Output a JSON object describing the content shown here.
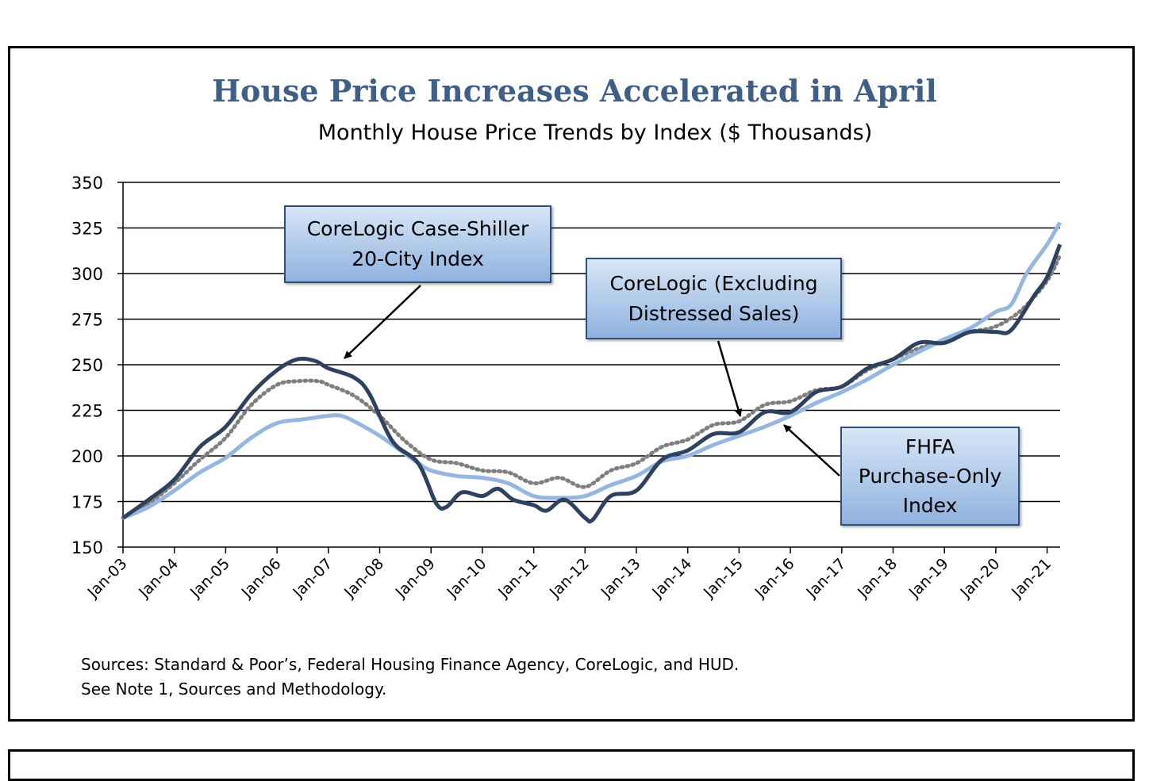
{
  "title": "House Price Increases Accelerated in April",
  "subtitle": "Monthly House Price Trends by Index ($ Thousands)",
  "callouts": {
    "case_shiller": [
      "CoreLogic Case-Shiller",
      "20-City Index"
    ],
    "corelogic": [
      "CoreLogic (Excluding",
      "Distressed Sales)"
    ],
    "fhfa": [
      "FHFA",
      "Purchase-Only",
      "Index"
    ]
  },
  "sources": {
    "line1": "Sources: Standard & Poor’s, Federal Housing Finance Agency, CoreLogic, and HUD.",
    "line2": "See Note 1, Sources and Methodology."
  },
  "colors": {
    "case_shiller": "#2e4260",
    "corelogic": "#7f7f7f",
    "fhfa": "#94b6e0",
    "title": "#3f5f86"
  },
  "chart_data": {
    "type": "line",
    "title": "House Price Increases Accelerated in April",
    "subtitle": "Monthly House Price Trends by Index ($ Thousands)",
    "ylim": [
      150,
      350
    ],
    "yticks": [
      150,
      175,
      200,
      225,
      250,
      275,
      300,
      325,
      350
    ],
    "xlim": [
      2003.0,
      2021.25
    ],
    "xticks": [
      "Jan-03",
      "Jan-04",
      "Jan-05",
      "Jan-06",
      "Jan-07",
      "Jan-08",
      "Jan-09",
      "Jan-10",
      "Jan-11",
      "Jan-12",
      "Jan-13",
      "Jan-14",
      "Jan-15",
      "Jan-16",
      "Jan-17",
      "Jan-18",
      "Jan-19",
      "Jan-20",
      "Jan-21"
    ],
    "grid": "horizontal",
    "series": [
      {
        "name": "CoreLogic Case-Shiller 20-City Index",
        "style": "solid",
        "x": [
          2003.0,
          2003.5,
          2004.0,
          2004.5,
          2005.0,
          2005.5,
          2006.0,
          2006.4,
          2006.75,
          2007.0,
          2007.5,
          2007.8,
          2008.25,
          2008.75,
          2009.1,
          2009.3,
          2009.6,
          2010.0,
          2010.3,
          2010.6,
          2011.0,
          2011.25,
          2011.6,
          2012.0,
          2012.15,
          2012.5,
          2013.0,
          2013.5,
          2014.0,
          2014.5,
          2015.0,
          2015.5,
          2016.0,
          2016.5,
          2017.0,
          2017.5,
          2018.0,
          2018.5,
          2019.0,
          2019.5,
          2020.0,
          2020.3,
          2020.75,
          2021.0,
          2021.25
        ],
        "y": [
          166,
          176,
          187,
          205,
          216,
          234,
          247,
          253,
          252,
          248,
          243,
          234,
          208,
          196,
          174,
          172,
          180,
          178,
          182,
          176,
          173,
          170,
          176,
          166,
          165,
          178,
          181,
          198,
          203,
          212,
          213,
          224,
          224,
          235,
          238,
          248,
          253,
          262,
          262,
          268,
          268,
          269,
          288,
          298,
          316
        ]
      },
      {
        "name": "CoreLogic (Excluding Distressed Sales)",
        "style": "dotted",
        "x": [
          2003.0,
          2003.5,
          2004.0,
          2004.5,
          2005.0,
          2005.5,
          2006.0,
          2006.4,
          2006.8,
          2007.0,
          2007.5,
          2008.0,
          2008.5,
          2009.0,
          2009.5,
          2010.0,
          2010.5,
          2011.0,
          2011.5,
          2012.0,
          2012.5,
          2013.0,
          2013.5,
          2014.0,
          2014.5,
          2015.0,
          2015.5,
          2016.0,
          2016.5,
          2017.0,
          2017.5,
          2018.0,
          2018.5,
          2019.0,
          2019.5,
          2020.0,
          2020.5,
          2021.0,
          2021.25
        ],
        "y": [
          166,
          174,
          185,
          198,
          210,
          228,
          239,
          241,
          241,
          239,
          233,
          222,
          208,
          198,
          196,
          192,
          191,
          185,
          188,
          183,
          192,
          196,
          205,
          209,
          217,
          219,
          228,
          230,
          236,
          238,
          247,
          253,
          259,
          263,
          268,
          271,
          280,
          296,
          310
        ]
      },
      {
        "name": "FHFA Purchase-Only Index",
        "style": "solid",
        "x": [
          2003.0,
          2003.5,
          2004.0,
          2004.5,
          2005.0,
          2005.5,
          2006.0,
          2006.5,
          2007.0,
          2007.25,
          2007.5,
          2008.0,
          2008.5,
          2008.75,
          2009.0,
          2009.5,
          2010.0,
          2010.5,
          2011.0,
          2011.5,
          2012.0,
          2012.5,
          2013.0,
          2013.5,
          2014.0,
          2014.5,
          2015.0,
          2015.5,
          2016.0,
          2016.5,
          2017.0,
          2017.5,
          2018.0,
          2018.5,
          2019.0,
          2019.5,
          2020.0,
          2020.3,
          2020.6,
          2021.0,
          2021.25
        ],
        "y": [
          166,
          172,
          181,
          191,
          199,
          210,
          218,
          220,
          222,
          222,
          219,
          211,
          201,
          196,
          192,
          189,
          188,
          185,
          178,
          177,
          178,
          184,
          189,
          197,
          200,
          206,
          211,
          216,
          222,
          229,
          235,
          242,
          250,
          257,
          264,
          270,
          279,
          283,
          300,
          316,
          328
        ]
      }
    ]
  }
}
